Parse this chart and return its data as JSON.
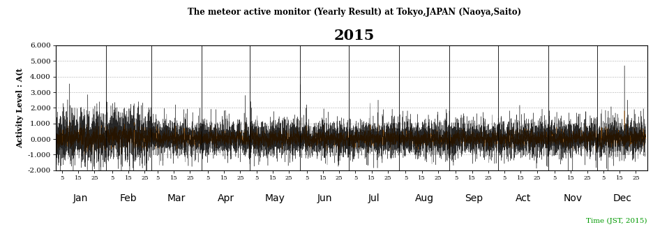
{
  "title_line1": "The meteor active monitor (Yearly Result) at Tokyo,JAPAN (Naoya,Saito)",
  "title_line2": "2015",
  "ylabel": "Activity Level : A(t",
  "xlabel_note": "Time (JST, 2015)",
  "months": [
    "Jan",
    "Feb",
    "Mar",
    "Apr",
    "May",
    "Jun",
    "Jul",
    "Aug",
    "Sep",
    "Act",
    "Nov",
    "Dec"
  ],
  "day_ticks": [
    5,
    15,
    25
  ],
  "ylim": [
    -2.0,
    6.0
  ],
  "yticks": [
    -2.0,
    -1.0,
    0.0,
    1.0,
    2.0,
    3.0,
    4.0,
    5.0,
    6.0
  ],
  "ytick_labels": [
    "-2.000",
    "-1.000",
    "0.000",
    "1.000",
    "2.000",
    "3.000",
    "4.000",
    "5.000",
    "6.000"
  ],
  "grid_color": "#aaaaaa",
  "line_color_black": "#000000",
  "line_color_orange": "#FF8800",
  "title1_color": "#000000",
  "title2_color": "#000000",
  "xlabel_color": "#00aa00",
  "bg_color": "#ffffff",
  "seed": 42,
  "month_days": [
    31,
    28,
    31,
    30,
    31,
    30,
    31,
    31,
    30,
    31,
    30,
    31
  ]
}
